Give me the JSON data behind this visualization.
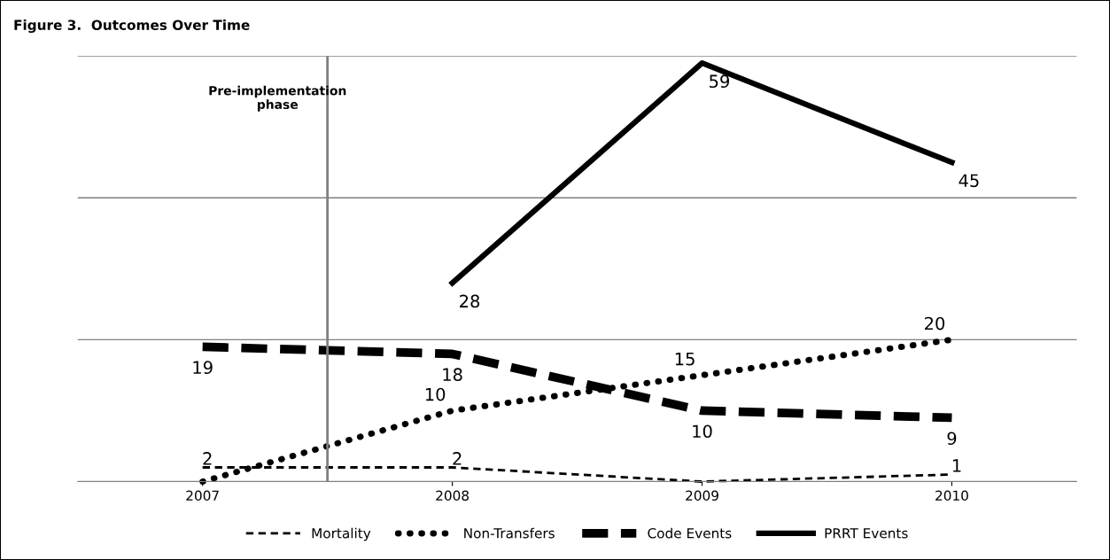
{
  "chart_data": {
    "type": "line",
    "title": "Figure 3.  Outcomes Over Time",
    "x": [
      2007,
      2008,
      2009,
      2010
    ],
    "xlim": [
      2006.5,
      2010.5
    ],
    "xticks": [
      2007,
      2008,
      2009,
      2010
    ],
    "ylim": [
      0,
      60
    ],
    "yticks": [
      {
        "value": 0,
        "label": null
      },
      {
        "value": 20,
        "label": null
      },
      {
        "value": 40,
        "label": null
      },
      {
        "value": 60,
        "label": null
      }
    ],
    "tick_labels": "x",
    "grid": "y",
    "legend": "bottom",
    "marker": "none",
    "ref_lines": [
      {
        "axis": "x",
        "value": 2007.5,
        "label": "Pre-implementation phase",
        "color": "#808080",
        "line_style": "solid"
      }
    ],
    "series": [
      {
        "name": "Mortality",
        "color": "#000000",
        "line_style": "dashed",
        "values": [
          2,
          2,
          0,
          1
        ],
        "value_labels": [
          "2",
          "2",
          null,
          "1"
        ]
      },
      {
        "name": "Non-Transfers",
        "color": "#000000",
        "line_style": "dotted",
        "values": [
          0,
          10,
          15,
          20
        ],
        "value_labels": [
          null,
          "10",
          "15",
          "20"
        ]
      },
      {
        "name": "Code Events",
        "color": "#000000",
        "line_style": "dashed",
        "values": [
          19,
          18,
          10,
          9
        ],
        "value_labels": [
          "19",
          "18",
          "10",
          "9"
        ]
      },
      {
        "name": "PRRT Events",
        "color": "#000000",
        "line_style": "solid",
        "values": [
          null,
          28,
          59,
          45
        ],
        "value_labels": [
          null,
          "28",
          "59",
          "45"
        ]
      }
    ]
  }
}
